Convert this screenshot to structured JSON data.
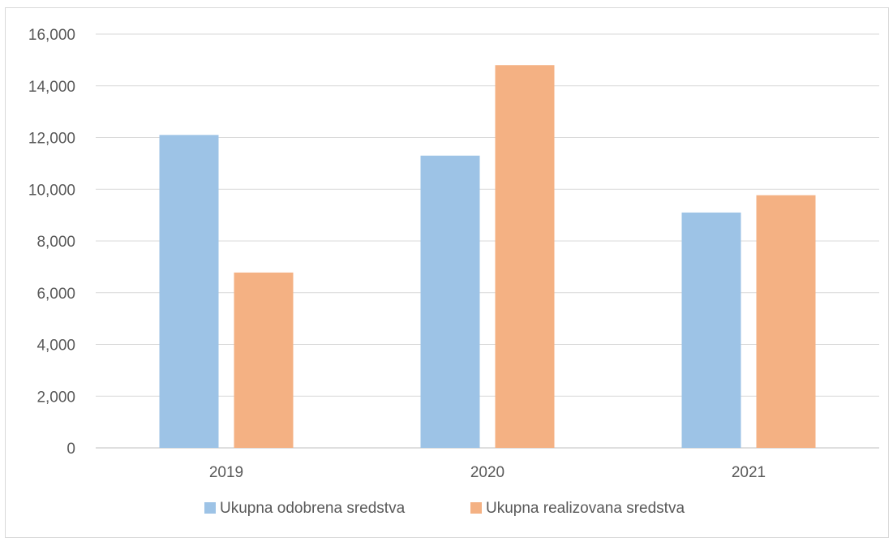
{
  "chart_data": {
    "type": "bar",
    "title": "",
    "xlabel": "",
    "ylabel": "",
    "categories": [
      "2019",
      "2020",
      "2021"
    ],
    "series": [
      {
        "name": "Ukupna odobrena sredstva",
        "color": "#9DC3E6",
        "values": [
          12100,
          11300,
          9100
        ]
      },
      {
        "name": "Ukupna realizovana sredstva",
        "color": "#F4B183",
        "values": [
          6780,
          14800,
          9770
        ]
      }
    ],
    "ylim": [
      0,
      16000
    ],
    "yticks": [
      "0",
      "2,000",
      "4,000",
      "6,000",
      "8,000",
      "10,000",
      "12,000",
      "14,000",
      "16,000"
    ],
    "grid": true,
    "legend_position": "bottom"
  }
}
